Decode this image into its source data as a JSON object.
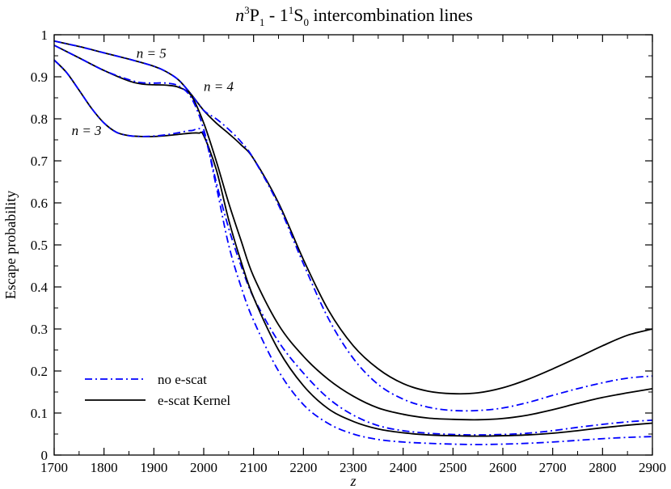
{
  "chart_data": {
    "type": "line",
    "title": {
      "n": "n",
      "sup1": "3",
      "p": "P",
      "sub1": "1",
      "mid": " - 1",
      "sup2": "1",
      "s": "S",
      "sub2": "0",
      "rest": " intercombination lines"
    },
    "xlabel": "z",
    "ylabel": "Escape probability",
    "xlim": [
      1700,
      2900
    ],
    "ylim": [
      0,
      1
    ],
    "xticks": [
      1700,
      1800,
      1900,
      2000,
      2100,
      2200,
      2300,
      2400,
      2500,
      2600,
      2700,
      2800,
      2900
    ],
    "yticks": [
      0,
      0.1,
      0.2,
      0.3,
      0.4,
      0.5,
      0.6,
      0.7,
      0.8,
      0.9,
      1
    ],
    "ytick_labels": [
      "0",
      "0.1",
      "0.2",
      "0.3",
      "0.4",
      "0.5",
      "0.6",
      "0.7",
      "0.8",
      "0.9",
      "1"
    ],
    "grid": false,
    "legend_placement": "bottom-left",
    "legend": [
      {
        "label": "no e-scat",
        "style": "dashdot",
        "color": "#0000ff"
      },
      {
        "label": "e-scat Kernel",
        "style": "solid",
        "color": "#000000"
      }
    ],
    "annotations": [
      {
        "text": "n = 5",
        "x": 1895,
        "y": 0.945
      },
      {
        "text": "n = 4",
        "x": 2030,
        "y": 0.866
      },
      {
        "text": "n = 3",
        "x": 1765,
        "y": 0.762
      }
    ],
    "series": [
      {
        "style": "solid",
        "color": "#000000",
        "x": [
          1700,
          1750,
          1800,
          1850,
          1900,
          1925,
          1950,
          1975,
          2000,
          2025,
          2050,
          2075,
          2100,
          2150,
          2200,
          2250,
          2300,
          2350,
          2400,
          2450,
          2500,
          2550,
          2600,
          2650,
          2700,
          2750,
          2800,
          2850,
          2900
        ],
        "y": [
          0.985,
          0.972,
          0.957,
          0.942,
          0.925,
          0.912,
          0.892,
          0.858,
          0.82,
          0.79,
          0.765,
          0.738,
          0.705,
          0.6,
          0.465,
          0.345,
          0.26,
          0.205,
          0.17,
          0.152,
          0.146,
          0.148,
          0.16,
          0.18,
          0.205,
          0.232,
          0.26,
          0.285,
          0.3
        ]
      },
      {
        "style": "dashdot",
        "color": "#0000ff",
        "x": [
          1700,
          1750,
          1800,
          1850,
          1900,
          1925,
          1950,
          1975,
          2000,
          2025,
          2050,
          2075,
          2100,
          2150,
          2200,
          2250,
          2300,
          2350,
          2400,
          2450,
          2500,
          2550,
          2600,
          2650,
          2700,
          2750,
          2800,
          2850,
          2900
        ],
        "y": [
          0.985,
          0.972,
          0.957,
          0.942,
          0.925,
          0.912,
          0.892,
          0.858,
          0.82,
          0.8,
          0.775,
          0.745,
          0.705,
          0.595,
          0.455,
          0.325,
          0.23,
          0.168,
          0.133,
          0.114,
          0.106,
          0.106,
          0.112,
          0.125,
          0.142,
          0.158,
          0.172,
          0.183,
          0.188
        ]
      },
      {
        "style": "solid",
        "color": "#000000",
        "x": [
          1700,
          1750,
          1800,
          1850,
          1875,
          1900,
          1925,
          1950,
          1975,
          2000,
          2025,
          2050,
          2075,
          2100,
          2150,
          2200,
          2250,
          2300,
          2350,
          2400,
          2450,
          2500,
          2550,
          2600,
          2650,
          2700,
          2750,
          2800,
          2850,
          2900
        ],
        "y": [
          0.975,
          0.945,
          0.915,
          0.89,
          0.883,
          0.881,
          0.88,
          0.875,
          0.855,
          0.79,
          0.7,
          0.6,
          0.51,
          0.425,
          0.31,
          0.235,
          0.18,
          0.14,
          0.112,
          0.097,
          0.088,
          0.085,
          0.084,
          0.087,
          0.095,
          0.108,
          0.123,
          0.137,
          0.148,
          0.158
        ]
      },
      {
        "style": "dashdot",
        "color": "#0000ff",
        "x": [
          1700,
          1750,
          1800,
          1850,
          1875,
          1900,
          1925,
          1950,
          1975,
          2000,
          2025,
          2050,
          2075,
          2100,
          2150,
          2200,
          2250,
          2300,
          2350,
          2400,
          2450,
          2500,
          2550,
          2600,
          2650,
          2700,
          2750,
          2800,
          2850,
          2900
        ],
        "y": [
          0.975,
          0.945,
          0.915,
          0.893,
          0.886,
          0.885,
          0.885,
          0.878,
          0.85,
          0.775,
          0.65,
          0.54,
          0.45,
          0.375,
          0.27,
          0.195,
          0.135,
          0.095,
          0.07,
          0.058,
          0.052,
          0.049,
          0.048,
          0.049,
          0.052,
          0.058,
          0.066,
          0.073,
          0.079,
          0.083
        ]
      },
      {
        "style": "solid",
        "color": "#000000",
        "x": [
          1700,
          1725,
          1750,
          1775,
          1800,
          1825,
          1850,
          1875,
          1900,
          1925,
          1950,
          1975,
          1990,
          2000,
          2025,
          2050,
          2075,
          2100,
          2150,
          2200,
          2250,
          2300,
          2350,
          2400,
          2450,
          2500,
          2550,
          2600,
          2650,
          2700,
          2750,
          2800,
          2850,
          2900
        ],
        "y": [
          0.94,
          0.91,
          0.868,
          0.825,
          0.79,
          0.768,
          0.76,
          0.758,
          0.758,
          0.76,
          0.763,
          0.766,
          0.766,
          0.76,
          0.68,
          0.56,
          0.46,
          0.375,
          0.25,
          0.165,
          0.11,
          0.08,
          0.062,
          0.053,
          0.048,
          0.046,
          0.045,
          0.046,
          0.048,
          0.052,
          0.058,
          0.065,
          0.071,
          0.076
        ]
      },
      {
        "style": "dashdot",
        "color": "#0000ff",
        "x": [
          1700,
          1725,
          1750,
          1775,
          1800,
          1825,
          1850,
          1875,
          1900,
          1925,
          1950,
          1975,
          2000,
          2025,
          2050,
          2075,
          2100,
          2150,
          2200,
          2250,
          2300,
          2350,
          2400,
          2450,
          2500,
          2550,
          2600,
          2650,
          2700,
          2750,
          2800,
          2850,
          2900
        ],
        "y": [
          0.94,
          0.91,
          0.868,
          0.825,
          0.79,
          0.768,
          0.76,
          0.758,
          0.759,
          0.762,
          0.767,
          0.772,
          0.765,
          0.64,
          0.5,
          0.4,
          0.32,
          0.2,
          0.12,
          0.075,
          0.05,
          0.037,
          0.031,
          0.028,
          0.026,
          0.025,
          0.026,
          0.028,
          0.031,
          0.035,
          0.039,
          0.042,
          0.044
        ]
      }
    ]
  }
}
